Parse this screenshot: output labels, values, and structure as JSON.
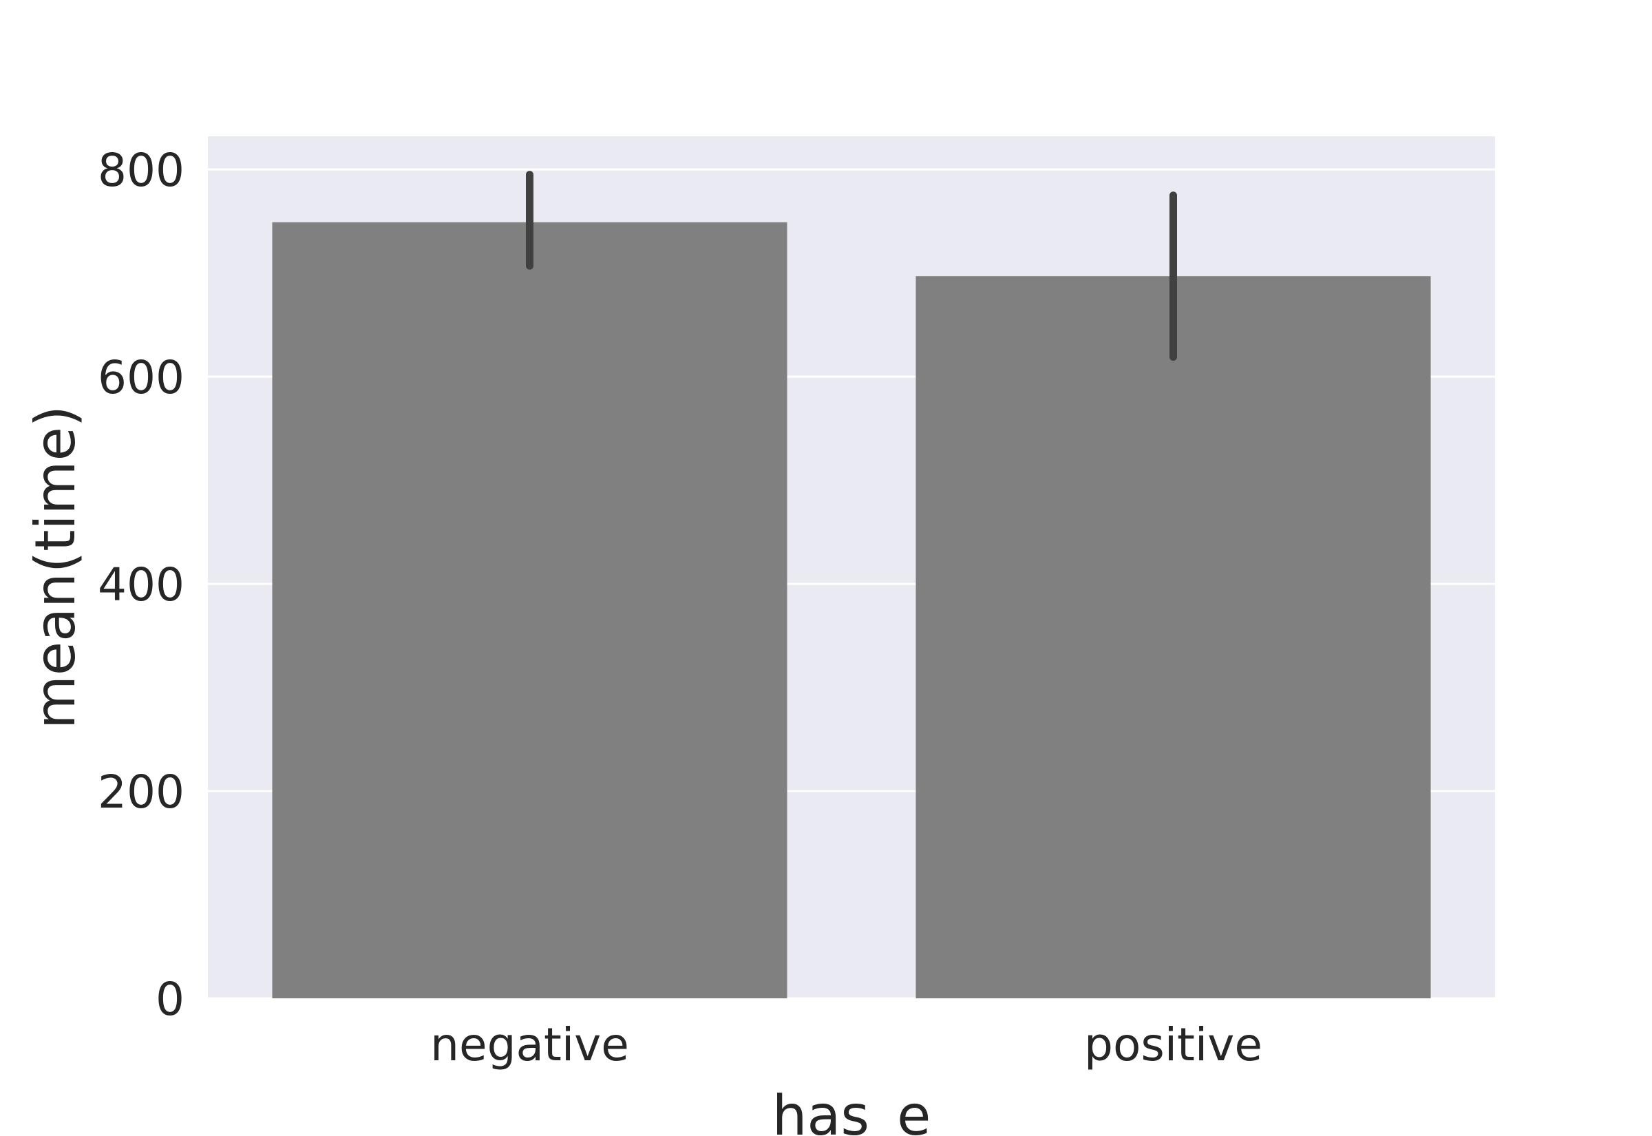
{
  "chart_data": {
    "type": "bar",
    "title": "",
    "xlabel": "has_e",
    "ylabel": "mean(time)",
    "categories": [
      "negative",
      "positive"
    ],
    "values": [
      749,
      697
    ],
    "error_bars": [
      {
        "low": 707,
        "high": 795
      },
      {
        "low": 619,
        "high": 775
      }
    ],
    "ylim": [
      0,
      832
    ],
    "yticks": [
      0,
      200,
      400,
      600,
      800
    ],
    "ytick_labels": [
      "0",
      "200",
      "400",
      "600",
      "800"
    ],
    "grid": true,
    "legend": "none",
    "colors": {
      "bar": "#808080",
      "error_bar": "#404040",
      "plot_background": "#eaeaf2",
      "grid": "#ffffff",
      "text": "#262626"
    }
  }
}
